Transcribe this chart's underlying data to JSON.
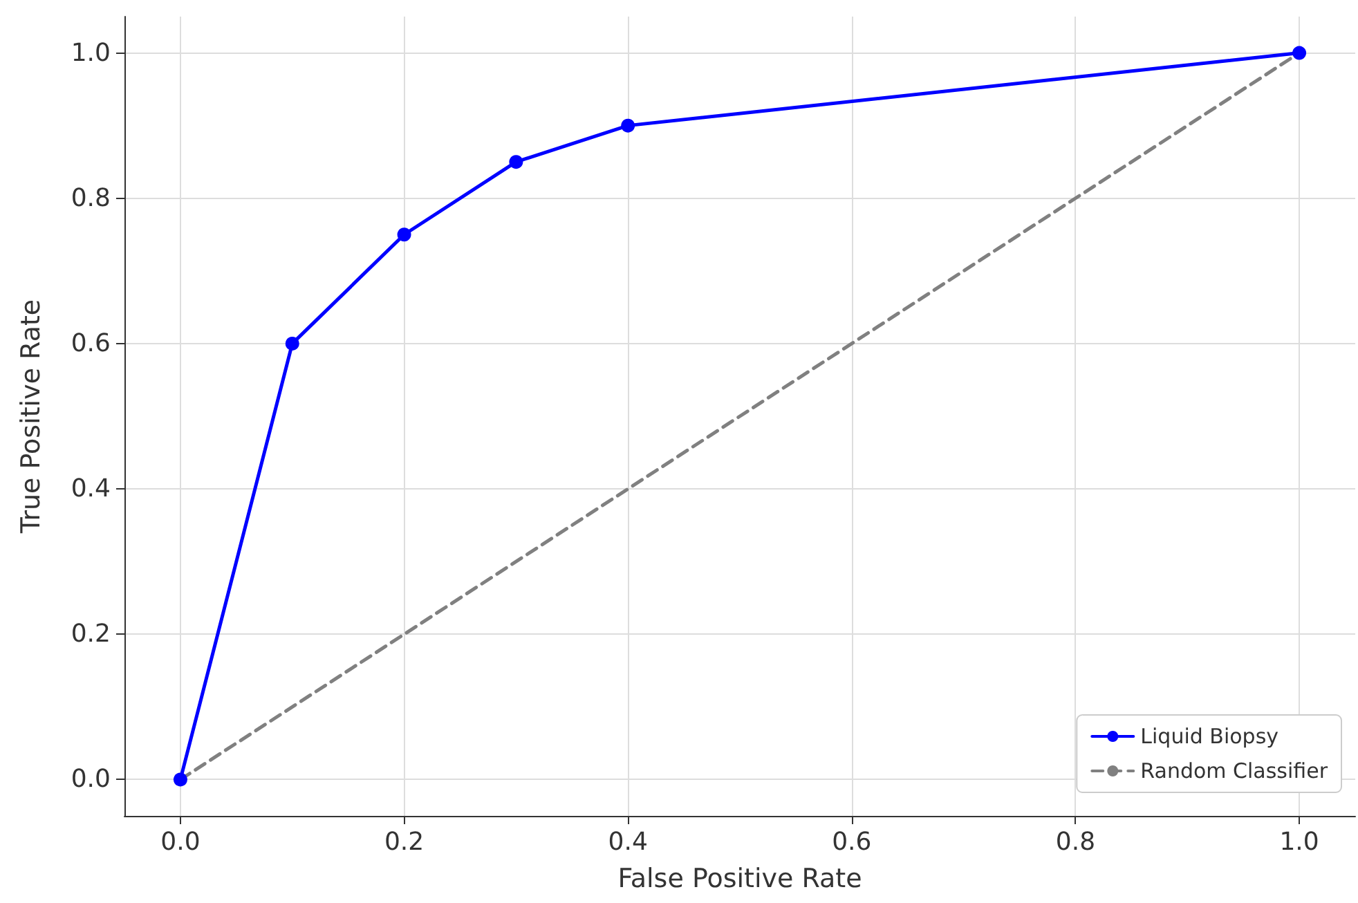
{
  "chart_data": {
    "type": "line",
    "xlabel": "False Positive Rate",
    "ylabel": "True Positive Rate",
    "xlim": [
      -0.05,
      1.05
    ],
    "ylim": [
      -0.05,
      1.05
    ],
    "xticks": [
      {
        "value": 0,
        "label": "0.0"
      },
      {
        "value": 0.2,
        "label": "0.2"
      },
      {
        "value": 0.4,
        "label": "0.4"
      },
      {
        "value": 0.6,
        "label": "0.6"
      },
      {
        "value": 0.8,
        "label": "0.8"
      },
      {
        "value": 1,
        "label": "1.0"
      }
    ],
    "yticks": [
      {
        "value": 0,
        "label": "0.0"
      },
      {
        "value": 0.2,
        "label": "0.2"
      },
      {
        "value": 0.4,
        "label": "0.4"
      },
      {
        "value": 0.6,
        "label": "0.6"
      },
      {
        "value": 0.8,
        "label": "0.8"
      },
      {
        "value": 1,
        "label": "1.0"
      }
    ],
    "grid": true,
    "legend": "bottom right",
    "series": [
      {
        "name": "Liquid Biopsy",
        "color": "#0000ff",
        "marker": "circle",
        "line_style": "solid",
        "x": [
          0,
          0.1,
          0.2,
          0.3,
          0.4,
          1
        ],
        "values": [
          0,
          0.6,
          0.75,
          0.85,
          0.9,
          1
        ]
      },
      {
        "name": "Random Classifier",
        "color": "#808080",
        "marker": "none",
        "line_style": "dashed",
        "x": [
          0,
          1
        ],
        "values": [
          0,
          1
        ]
      }
    ]
  }
}
